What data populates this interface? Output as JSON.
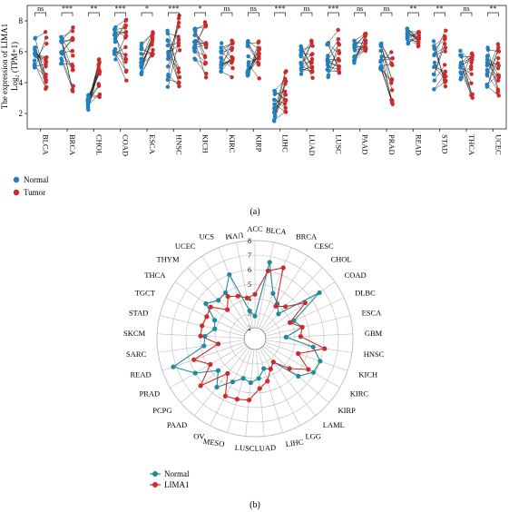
{
  "panel_a": {
    "caption": "(a)",
    "ylabel_line1": "The expression of LIMA1",
    "ylabel_line2": "Log₂ (TPM+1)",
    "legend": [
      {
        "label": "Normal",
        "color": "#1f7fbf"
      },
      {
        "label": "Tumor",
        "color": "#cc2b2b"
      }
    ]
  },
  "panel_b": {
    "caption": "(b)",
    "legend": [
      {
        "label": "Normal",
        "color": "#1e8a9a"
      },
      {
        "label": "LIMA1",
        "color": "#cc2b2b"
      }
    ]
  },
  "colors": {
    "normal_a": "#1f7fbf",
    "tumor": "#cc2b2b",
    "normal_b": "#1e8a9a",
    "grid": "#bbbbbb",
    "line": "#222222"
  },
  "chart_data": [
    {
      "type": "scatter",
      "subtype": "paired dot plot",
      "ylim": [
        1,
        9
      ],
      "yticks": [
        2,
        4,
        6,
        8
      ],
      "xlabel": "",
      "ylabel": "The expression of LIMA1 Log₂ (TPM+1)",
      "legend_position": "bottom-left",
      "series_names": [
        "Normal",
        "Tumor"
      ],
      "categories": [
        "BLCA",
        "BRCA",
        "CHOL",
        "COAD",
        "ESCA",
        "HNSC",
        "KICH",
        "KIRC",
        "KIRP",
        "LIHC",
        "LUAD",
        "LUSC",
        "PAAD",
        "PRAD",
        "READ",
        "STAD",
        "THCA",
        "UCEC"
      ],
      "significance": [
        "ns",
        "***",
        "**",
        "***",
        "*",
        "***",
        "*",
        "ns",
        "ns",
        "***",
        "ns",
        "***",
        "ns",
        "ns",
        "**",
        "**",
        "ns",
        "**"
      ],
      "normal_range": [
        [
          4.8,
          7.0
        ],
        [
          5.2,
          7.2
        ],
        [
          2.2,
          3.2
        ],
        [
          5.5,
          7.6
        ],
        [
          4.5,
          6.6
        ],
        [
          3.4,
          7.6
        ],
        [
          5.0,
          7.5
        ],
        [
          4.6,
          6.9
        ],
        [
          4.4,
          6.8
        ],
        [
          1.4,
          3.8
        ],
        [
          4.5,
          6.4
        ],
        [
          4.2,
          6.6
        ],
        [
          5.2,
          6.8
        ],
        [
          4.7,
          6.6
        ],
        [
          6.5,
          7.6
        ],
        [
          3.4,
          6.8
        ],
        [
          4.2,
          6.2
        ],
        [
          3.7,
          6.4
        ]
      ],
      "tumor_range": [
        [
          3.4,
          7.4
        ],
        [
          3.2,
          7.7
        ],
        [
          3.0,
          5.8
        ],
        [
          3.8,
          8.4
        ],
        [
          5.7,
          7.3
        ],
        [
          3.6,
          8.4
        ],
        [
          4.3,
          8.1
        ],
        [
          4.1,
          6.9
        ],
        [
          4.2,
          6.7
        ],
        [
          1.8,
          4.8
        ],
        [
          4.3,
          6.8
        ],
        [
          4.6,
          8.7
        ],
        [
          6.0,
          7.2
        ],
        [
          2.4,
          6.6
        ],
        [
          6.3,
          7.3
        ],
        [
          3.6,
          7.4
        ],
        [
          2.8,
          6.1
        ],
        [
          3.0,
          6.5
        ]
      ]
    },
    {
      "type": "radar",
      "rlim": [
        2,
        8
      ],
      "rticks": [
        2,
        3,
        4,
        5,
        6,
        7,
        8
      ],
      "legend_position": "bottom-left",
      "categories": [
        "ACC",
        "BLCA",
        "BRCA",
        "CESC",
        "CHOL",
        "COAD",
        "DLBC",
        "ESCA",
        "GBM",
        "HNSC",
        "KICH",
        "KIRC",
        "KIRP",
        "LAML",
        "LGG",
        "LIHC",
        "LUAD",
        "LUSC",
        "MESO",
        "OV",
        "PAAD",
        "PCPG",
        "PRAD",
        "READ",
        "SARC",
        "SKCM",
        "STAD",
        "TGCT",
        "THCA",
        "THYM",
        "UCEC",
        "UCS",
        "UVM"
      ],
      "series": [
        {
          "name": "Normal",
          "values": [
            2.8,
            6.6,
            4.6,
            4.1,
            3.6,
            6.7,
            4.2,
            4.6,
            3.4,
            5.3,
            6.0,
            5.9,
            5.2,
            3.3,
            3.6,
            3.4,
            4.0,
            4.3,
            4.1,
            4.6,
            5.5,
            4.6,
            6.0,
            7.2,
            4.8,
            4.7,
            4.1,
            4.3,
            5.4,
            4.9,
            5.0,
            6.0,
            3.2
          ]
        },
        {
          "name": "LIMA1",
          "values": [
            4.3,
            6.0,
            6.5,
            3.9,
            4.3,
            5.5,
            3.9,
            4.6,
            4.4,
            6.1,
            4.4,
            5.5,
            4.4,
            3.3,
            3.6,
            4.3,
            4.7,
            5.5,
            5.6,
            5.7,
            4.3,
            6.2,
            4.8,
            5.7,
            3.8,
            5.0,
            5.0,
            4.9,
            5.0,
            4.0,
            4.7,
            4.4,
            4.1
          ]
        }
      ]
    }
  ]
}
